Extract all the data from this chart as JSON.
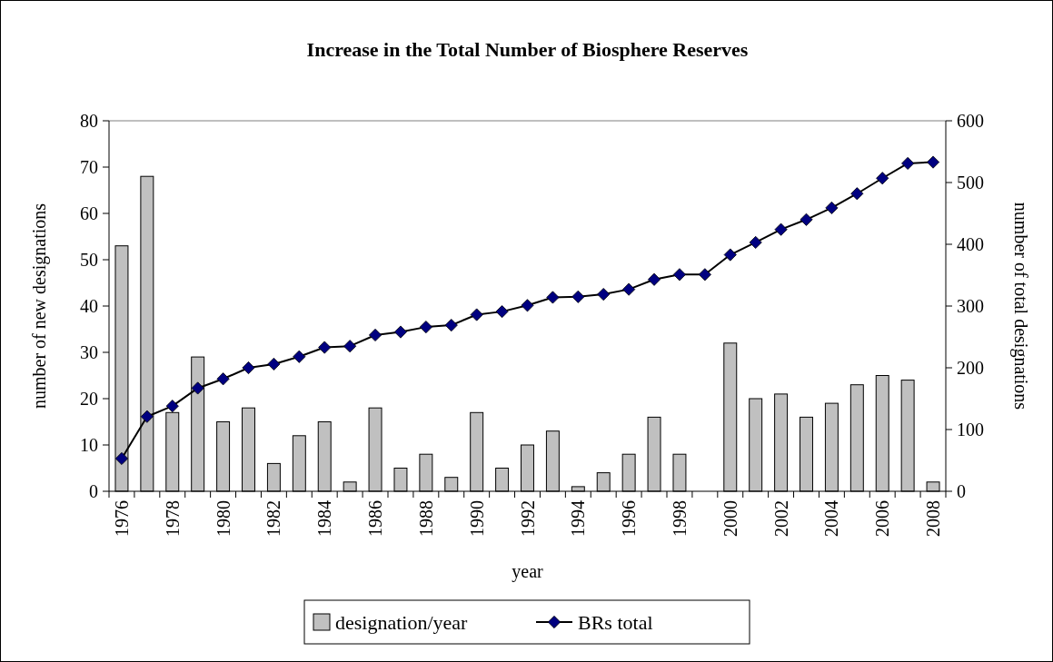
{
  "chart_data": {
    "type": "bar",
    "title": "Increase in the Total Number of Biosphere Reserves",
    "xlabel": "year",
    "ylabel": "number of new designations",
    "y2label": "number of total designations",
    "categories": [
      "1976",
      null,
      "1978",
      null,
      "1980",
      null,
      "1982",
      null,
      "1984",
      null,
      "1986",
      null,
      "1988",
      null,
      "1990",
      null,
      "1992",
      null,
      "1994",
      null,
      "1996",
      null,
      "1998",
      null,
      "2000",
      null,
      "2002",
      null,
      "2004",
      null,
      "2006",
      null,
      "2008"
    ],
    "series": [
      {
        "name": "designation/year",
        "color": "#c0c0c0",
        "values": [
          53,
          68,
          17,
          29,
          15,
          18,
          6,
          12,
          15,
          2,
          18,
          5,
          8,
          3,
          17,
          5,
          10,
          13,
          1,
          4,
          8,
          16,
          8,
          0,
          32,
          20,
          21,
          16,
          19,
          23,
          25,
          24,
          2
        ]
      },
      {
        "name": "BRs total",
        "type": "line",
        "axis": "y2",
        "color": "#000080",
        "values": [
          53,
          121,
          138,
          167,
          182,
          200,
          206,
          218,
          233,
          235,
          253,
          258,
          266,
          269,
          286,
          291,
          301,
          314,
          315,
          319,
          327,
          343,
          351,
          351,
          383,
          403,
          424,
          440,
          459,
          482,
          507,
          531,
          533
        ]
      }
    ],
    "ylim": [
      0,
      80
    ],
    "yticks": [
      0,
      10,
      20,
      30,
      40,
      50,
      60,
      70,
      80
    ],
    "y2lim": [
      0,
      600
    ],
    "y2ticks": [
      0,
      100,
      200,
      300,
      400,
      500,
      600
    ],
    "grid": false,
    "legend": "bottom",
    "marker": "diamond",
    "line_style": "solid"
  }
}
